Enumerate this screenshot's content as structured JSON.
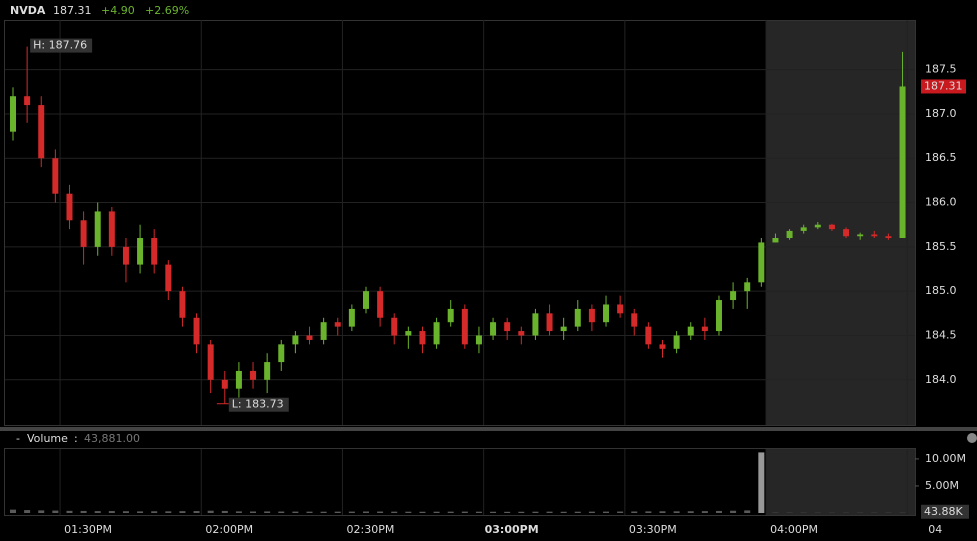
{
  "header": {
    "symbol": "NVDA",
    "price": "187.31",
    "change": "+4.90",
    "change_pct": "+2.69%"
  },
  "chart_data": {
    "type": "candlestick",
    "x": [
      800,
      803,
      806,
      809,
      812,
      815,
      818,
      821,
      824,
      827,
      830,
      833,
      836,
      839,
      842,
      845,
      848,
      851,
      854,
      857,
      860,
      863,
      866,
      869,
      872,
      875,
      878,
      881,
      884,
      887,
      890,
      893,
      896,
      899,
      902,
      905,
      908,
      911,
      914,
      917,
      920,
      923,
      926,
      929,
      932,
      935,
      938,
      941,
      944,
      947,
      950,
      953,
      956,
      959,
      962,
      965,
      968,
      971,
      974,
      977,
      980,
      983,
      986,
      989
    ],
    "open": [
      186.8,
      187.2,
      187.1,
      186.5,
      186.1,
      185.8,
      185.5,
      185.9,
      185.5,
      185.3,
      185.6,
      185.3,
      185.0,
      184.7,
      184.4,
      184.0,
      183.9,
      184.1,
      184.0,
      184.2,
      184.4,
      184.5,
      184.45,
      184.65,
      184.6,
      184.8,
      185.0,
      184.7,
      184.5,
      184.55,
      184.4,
      184.65,
      184.8,
      184.4,
      184.5,
      184.65,
      184.55,
      184.5,
      184.75,
      184.55,
      184.6,
      184.8,
      184.65,
      184.85,
      184.75,
      184.6,
      184.4,
      184.35,
      184.5,
      184.6,
      184.55,
      184.9,
      185.0,
      185.1,
      185.55,
      185.6,
      185.68,
      185.72,
      185.75,
      185.7,
      185.62,
      185.64,
      185.62,
      185.6
    ],
    "high": [
      187.3,
      187.76,
      187.2,
      186.6,
      186.2,
      185.9,
      186.0,
      185.95,
      185.6,
      185.75,
      185.7,
      185.35,
      185.05,
      184.75,
      184.45,
      184.1,
      184.2,
      184.2,
      184.3,
      184.45,
      184.55,
      184.6,
      184.7,
      184.7,
      184.85,
      185.05,
      185.05,
      184.75,
      184.6,
      184.6,
      184.7,
      184.9,
      184.85,
      184.6,
      184.7,
      184.7,
      184.6,
      184.8,
      184.85,
      184.7,
      184.9,
      184.85,
      184.95,
      184.95,
      184.8,
      184.65,
      184.45,
      184.55,
      184.65,
      184.7,
      184.95,
      185.1,
      185.15,
      185.6,
      185.65,
      185.7,
      185.75,
      185.78,
      185.76,
      185.72,
      185.66,
      185.68,
      185.65,
      187.7
    ],
    "low": [
      186.7,
      186.9,
      186.4,
      186.0,
      185.7,
      185.3,
      185.4,
      185.4,
      185.1,
      185.2,
      185.2,
      184.9,
      184.6,
      184.3,
      183.85,
      183.73,
      183.8,
      183.9,
      183.85,
      184.1,
      184.3,
      184.4,
      184.4,
      184.5,
      184.55,
      184.75,
      184.6,
      184.4,
      184.35,
      184.3,
      184.35,
      184.6,
      184.35,
      184.3,
      184.45,
      184.45,
      184.4,
      184.45,
      184.5,
      184.45,
      184.55,
      184.55,
      184.6,
      184.7,
      184.5,
      184.35,
      184.25,
      184.3,
      184.45,
      184.45,
      184.5,
      184.8,
      184.8,
      185.05,
      185.55,
      185.58,
      185.65,
      185.7,
      185.68,
      185.6,
      185.58,
      185.6,
      185.58,
      185.6
    ],
    "close": [
      187.2,
      187.1,
      186.5,
      186.1,
      185.8,
      185.5,
      185.9,
      185.5,
      185.3,
      185.6,
      185.3,
      185.0,
      184.7,
      184.4,
      184.0,
      183.9,
      184.1,
      184.0,
      184.2,
      184.4,
      184.5,
      184.45,
      184.65,
      184.6,
      184.8,
      185.0,
      184.7,
      184.5,
      184.55,
      184.4,
      184.65,
      184.8,
      184.4,
      184.5,
      184.65,
      184.55,
      184.5,
      184.75,
      184.55,
      184.6,
      184.8,
      184.65,
      184.85,
      184.75,
      184.6,
      184.4,
      184.35,
      184.5,
      184.6,
      184.55,
      184.9,
      185.0,
      185.1,
      185.55,
      185.6,
      185.68,
      185.72,
      185.75,
      185.7,
      185.62,
      185.64,
      185.62,
      185.6,
      187.31
    ],
    "up_color": "#6ab42d",
    "down_color": "#d42a2a",
    "last_price_label": "187.31",
    "high_label": "H: 187.76",
    "low_label": "L: 183.73",
    "xlim": [
      798.3,
      991.65
    ],
    "xticks": [
      {
        "value": 810,
        "label": "01:30PM"
      },
      {
        "value": 840,
        "label": "02:00PM"
      },
      {
        "value": 870,
        "label": "02:30PM"
      },
      {
        "value": 900,
        "label": "03:00PM"
      },
      {
        "value": 930,
        "label": "03:30PM"
      },
      {
        "value": 960,
        "label": "04:00PM"
      },
      {
        "value": 990,
        "label": "04"
      }
    ],
    "ylim": [
      183.49,
      188.06
    ],
    "yticks": [
      {
        "value": 184,
        "label": "184.0"
      },
      184.5,
      {
        "value": 185,
        "label": "185.0"
      },
      185.5,
      {
        "value": 186,
        "label": "186.0"
      },
      186.5,
      {
        "value": 187,
        "label": "187.0"
      },
      187.5
    ],
    "grid": true,
    "volume": {
      "name": "Volume",
      "readout": "43,881.00",
      "last_label": "43.88K",
      "color": "#5a5a5a",
      "values": [
        620000,
        540000,
        480000,
        450000,
        400000,
        380000,
        350000,
        360000,
        330000,
        300000,
        320000,
        310000,
        340000,
        360000,
        420000,
        380000,
        300000,
        280000,
        290000,
        270000,
        260000,
        250000,
        240000,
        250000,
        260000,
        280000,
        270000,
        250000,
        240000,
        230000,
        240000,
        250000,
        260000,
        240000,
        230000,
        220000,
        230000,
        240000,
        250000,
        230000,
        240000,
        250000,
        260000,
        270000,
        280000,
        300000,
        320000,
        310000,
        330000,
        350000,
        380000,
        420000,
        480000,
        11200000,
        60000,
        50000,
        45000,
        40000,
        38000,
        35000,
        40000,
        42000,
        45000,
        43881
      ],
      "ylim": [
        0,
        12200000
      ],
      "yticks": [
        {
          "value": 5000000,
          "label": "5.00M"
        },
        {
          "value": 10000000,
          "label": "10.00M"
        }
      ]
    }
  }
}
